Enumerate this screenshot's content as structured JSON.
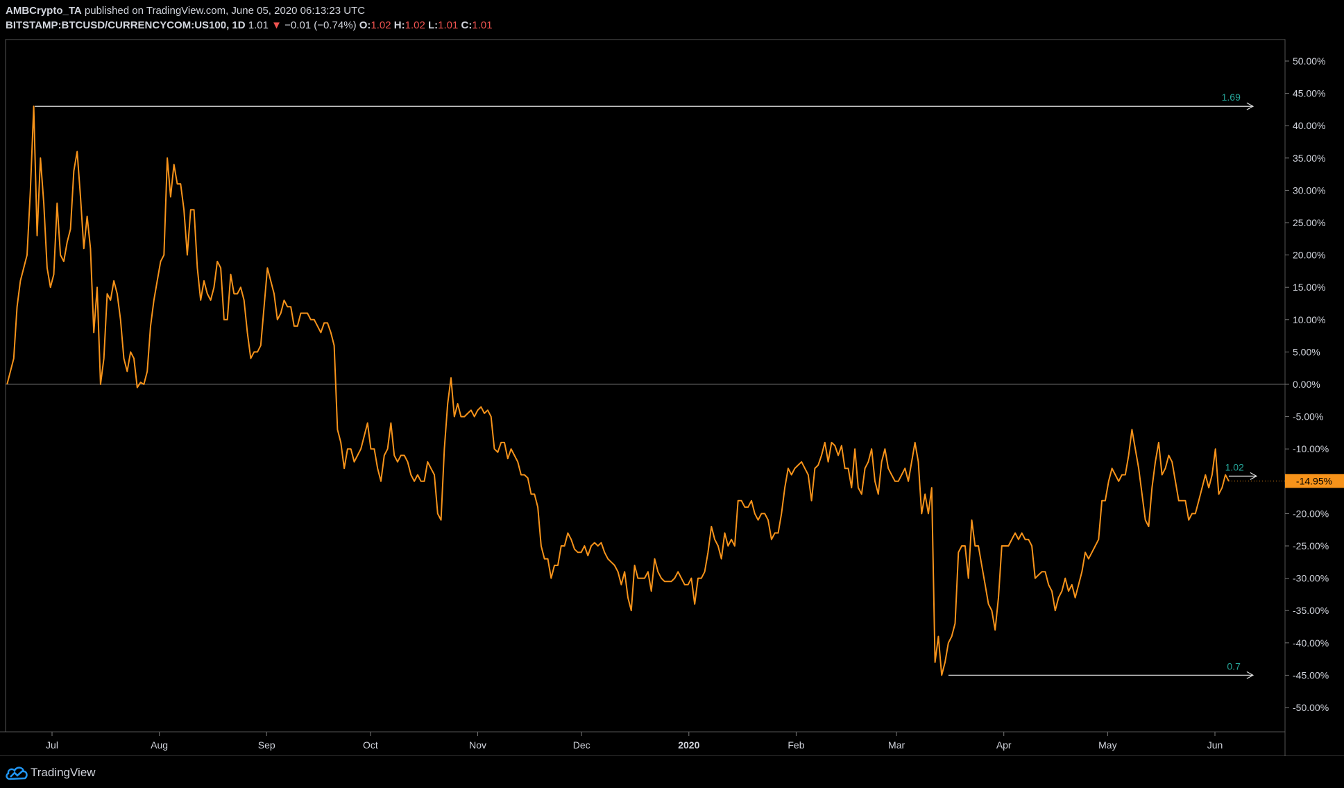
{
  "header": {
    "author": "AMBCrypto_TA",
    "published": "published on TradingView.com, June 05, 2020 06:13:23 UTC",
    "symbol": "BITSTAMP:BTCUSD/CURRENCYCOM:US100, 1D",
    "last": "1.01",
    "change": "−0.01 (−0.74%)",
    "o_label": "O:",
    "o_value": "1.02",
    "h_label": "H:",
    "h_value": "1.02",
    "l_label": "L:",
    "l_value": "1.01",
    "c_label": "C:",
    "c_value": "1.01"
  },
  "footer": {
    "brand": "TradingView"
  },
  "colors": {
    "line": "#f7931a",
    "background": "#000000",
    "axis_text": "#d1d4dc",
    "level_text": "#26a69a",
    "price_tag": "#f7931a"
  },
  "chart_data": {
    "type": "line",
    "y_unit": "percent change",
    "ylim": [
      -55,
      55
    ],
    "y_ticks": [
      "50.00%",
      "45.00%",
      "40.00%",
      "35.00%",
      "30.00%",
      "25.00%",
      "20.00%",
      "15.00%",
      "10.00%",
      "5.00%",
      "0.00%",
      "-5.00%",
      "-10.00%",
      "-15.00%",
      "-20.00%",
      "-25.00%",
      "-30.00%",
      "-35.00%",
      "-40.00%",
      "-45.00%",
      "-50.00%"
    ],
    "x_ticks": [
      "Jul",
      "Aug",
      "Sep",
      "Oct",
      "Nov",
      "Dec",
      "2020",
      "Feb",
      "Mar",
      "Apr",
      "May",
      "Jun"
    ],
    "x_tick_dates": [
      "2019-07-01",
      "2019-08-01",
      "2019-09-01",
      "2019-10-01",
      "2019-11-01",
      "2019-12-01",
      "2020-01-01",
      "2020-02-01",
      "2020-03-01",
      "2020-04-01",
      "2020-05-01",
      "2020-06-01"
    ],
    "bold_tick": "2020",
    "start_date": "2019-06-18",
    "current_label": "-14.95%",
    "current_value": -14.95,
    "levels": [
      {
        "label": "1.69",
        "value": 43,
        "from_date": "2019-06-26",
        "to_date": "2020-06-12"
      },
      {
        "label": "1.02",
        "value": -14.2,
        "from_date": "2020-06-05",
        "to_date": "2020-06-13"
      },
      {
        "label": "0.7",
        "value": -45,
        "from_date": "2020-03-16",
        "to_date": "2020-06-12"
      }
    ],
    "series": [
      {
        "values": [
          0,
          2,
          4,
          12,
          16,
          18,
          20,
          30,
          43,
          23,
          35,
          28,
          18,
          15,
          17,
          28,
          20,
          19,
          22,
          24,
          33,
          36,
          29,
          21,
          26,
          21,
          8,
          15,
          0,
          4,
          14,
          13,
          16,
          14,
          10,
          4,
          2,
          5,
          4,
          -0.5,
          0.3,
          0,
          2,
          9,
          13,
          16,
          19,
          20,
          35,
          29,
          34,
          31,
          31,
          27,
          20,
          27,
          27,
          18,
          13,
          16,
          14,
          13,
          15,
          19,
          18,
          10,
          10,
          17,
          14,
          14,
          15,
          13,
          8,
          4,
          5,
          5,
          6,
          12,
          18,
          16,
          14,
          10,
          11,
          13,
          12,
          12,
          9,
          9,
          11,
          11,
          11,
          10,
          10,
          9,
          8,
          9.5,
          9.5,
          8,
          6,
          -7,
          -9,
          -13,
          -10,
          -10,
          -12,
          -11,
          -10,
          -8,
          -6,
          -10,
          -10,
          -13,
          -15,
          -11,
          -10,
          -6,
          -11,
          -12,
          -11,
          -11,
          -12,
          -14,
          -15,
          -14,
          -15,
          -15,
          -12,
          -13,
          -14,
          -20,
          -21,
          -10,
          -3,
          1,
          -5,
          -3,
          -5,
          -5,
          -4.5,
          -4,
          -5,
          -4,
          -3.5,
          -4.5,
          -4,
          -5,
          -10,
          -10.5,
          -9,
          -9,
          -11.5,
          -10,
          -11,
          -12,
          -14,
          -14,
          -14.5,
          -17,
          -17,
          -19,
          -25,
          -27,
          -27,
          -30,
          -28,
          -28,
          -25,
          -25,
          -23,
          -24,
          -25.5,
          -26,
          -26,
          -25,
          -26.5,
          -25,
          -24.5,
          -25,
          -24.5,
          -26,
          -27,
          -27.5,
          -28,
          -29,
          -31,
          -29,
          -33,
          -35,
          -28,
          -30,
          -30,
          -30,
          -29,
          -32,
          -27,
          -29,
          -30,
          -30.5,
          -30.5,
          -30.5,
          -30,
          -29,
          -30,
          -31,
          -31,
          -30,
          -34,
          -30,
          -30,
          -29,
          -26,
          -22,
          -24,
          -25,
          -27,
          -23,
          -25,
          -24,
          -25,
          -18,
          -18,
          -19,
          -19,
          -18,
          -20,
          -21,
          -20,
          -20,
          -21,
          -24,
          -23,
          -23,
          -20,
          -16,
          -13,
          -14,
          -13,
          -12.5,
          -12,
          -13,
          -14,
          -18,
          -13,
          -12.5,
          -11,
          -9,
          -12,
          -9,
          -9.5,
          -11,
          -9.5,
          -13,
          -13,
          -16,
          -10,
          -16,
          -17,
          -13,
          -12,
          -10,
          -15,
          -17,
          -12,
          -10,
          -13,
          -14,
          -15,
          -15,
          -14,
          -13,
          -15,
          -12,
          -9,
          -12,
          -20,
          -17,
          -20,
          -16,
          -43,
          -39,
          -45,
          -43,
          -40,
          -39,
          -37,
          -26,
          -25,
          -25,
          -30,
          -21,
          -25,
          -25,
          -28,
          -31,
          -34,
          -35,
          -38,
          -33,
          -25,
          -25,
          -25,
          -24,
          -23,
          -24,
          -23,
          -24,
          -24,
          -25,
          -30,
          -29.5,
          -29,
          -29,
          -31,
          -32,
          -35,
          -33,
          -32,
          -30,
          -32,
          -31,
          -33,
          -31,
          -29,
          -26,
          -27,
          -26,
          -25,
          -24,
          -18,
          -18,
          -15,
          -13,
          -14,
          -15,
          -14,
          -14,
          -11,
          -7,
          -10,
          -13,
          -17,
          -21,
          -22,
          -16,
          -12,
          -9,
          -14,
          -13,
          -11,
          -12,
          -15,
          -18,
          -18,
          -18,
          -21,
          -20,
          -20,
          -18,
          -16,
          -14,
          -16,
          -14,
          -10,
          -17,
          -16,
          -14,
          -15
        ]
      }
    ]
  }
}
